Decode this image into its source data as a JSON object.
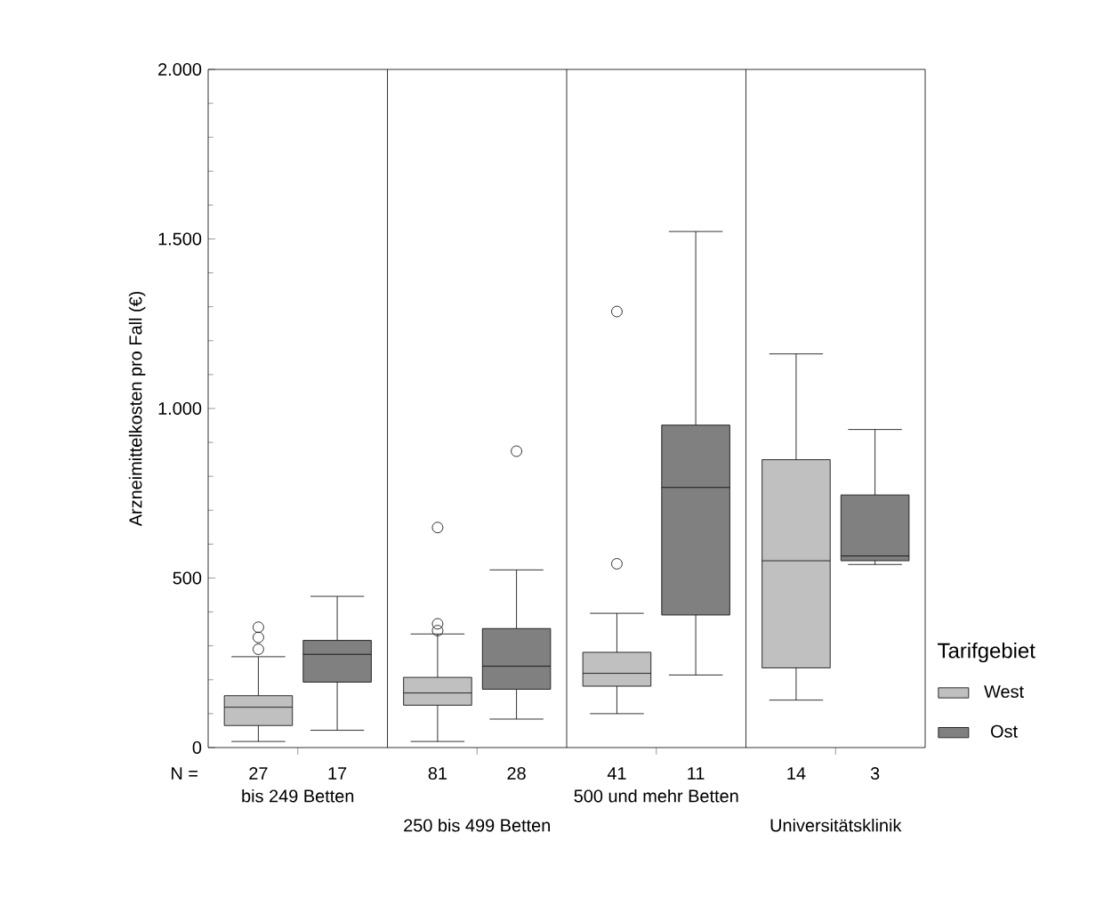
{
  "chart_data": {
    "type": "box",
    "ylabel": "Arzneimittelkosten pro Fall (€)",
    "legend_title": "Tarifgebiet",
    "categories": [
      "bis 249 Betten",
      "250 bis 499 Betten",
      "500 und mehr Betten",
      "Universitätsklinik"
    ],
    "ylim": [
      0,
      2000
    ],
    "yticks": [
      0,
      500,
      {
        "value": 1000,
        "label": "1.000"
      },
      {
        "value": 1500,
        "label": "1.500"
      },
      {
        "value": 2000,
        "label": "2.000"
      }
    ],
    "grid": "x",
    "legend": "right",
    "series": [
      {
        "name": "West",
        "color": "#c0c0c0",
        "boxes": [
          {
            "low": 18,
            "q1": 65,
            "median": 119,
            "q3": 153,
            "high": 268,
            "outliers": [
              290,
              325,
              355
            ]
          },
          {
            "low": 18,
            "q1": 125,
            "median": 161,
            "q3": 207,
            "high": 335,
            "outliers": [
              345,
              365,
              649
            ]
          },
          {
            "low": 100,
            "q1": 181,
            "median": 219,
            "q3": 281,
            "high": 396,
            "outliers": [
              542,
              1286
            ]
          },
          {
            "low": 140,
            "q1": 235,
            "median": 551,
            "q3": 849,
            "high": 1161
          }
        ]
      },
      {
        "name": "Ost",
        "color": "#808080",
        "boxes": [
          {
            "low": 51,
            "q1": 193,
            "median": 275,
            "q3": 316,
            "high": 446
          },
          {
            "low": 84,
            "q1": 172,
            "median": 240,
            "q3": 351,
            "high": 524,
            "outliers": [
              874
            ]
          },
          {
            "low": 214,
            "q1": 391,
            "median": 767,
            "q3": 951,
            "high": 1522
          },
          {
            "low": 540,
            "q1": 551,
            "median": 565,
            "q3": 745,
            "high": 938
          }
        ]
      }
    ],
    "annotations": [
      "N =",
      "27",
      "17",
      "81",
      "28",
      "41",
      "11",
      "14",
      "3"
    ]
  }
}
